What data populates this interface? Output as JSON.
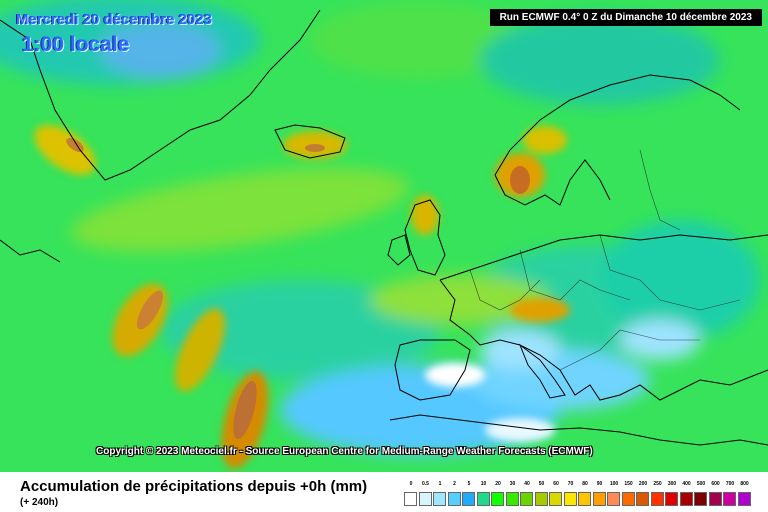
{
  "map": {
    "date_label": "Mercredi 20 décembre 2023",
    "time_label": "1:00 locale",
    "run_label": "Run ECMWF 0.4° 0 Z du Dimanche 10 décembre 2023",
    "copyright": "Copyright © 2023 Meteociel.fr - Source European Centre for Medium-Range Weather Forecasts (ECMWF)"
  },
  "footer": {
    "title": "Accumulation de précipitations depuis +0h (mm)",
    "subtitle": "(+ 240h)"
  },
  "legend": {
    "labels": [
      "0",
      "0.5",
      "1",
      "2",
      "5",
      "10",
      "20",
      "30",
      "40",
      "50",
      "60",
      "70",
      "80",
      "90",
      "100",
      "150",
      "200",
      "250",
      "300",
      "400",
      "500",
      "600",
      "700",
      "800"
    ],
    "colors": [
      "#ffffff",
      "#d7f5ff",
      "#9fe7ff",
      "#55cfff",
      "#22aaff",
      "#21d98b",
      "#12ff00",
      "#36ea00",
      "#6bd400",
      "#a6cc00",
      "#dbd800",
      "#ffe600",
      "#ffc400",
      "#ffa000",
      "#ff8a55",
      "#ff6a00",
      "#d95a00",
      "#ff3300",
      "#e00000",
      "#a80000",
      "#7d0000",
      "#a30050",
      "#cc00a0",
      "#b000d0"
    ]
  }
}
